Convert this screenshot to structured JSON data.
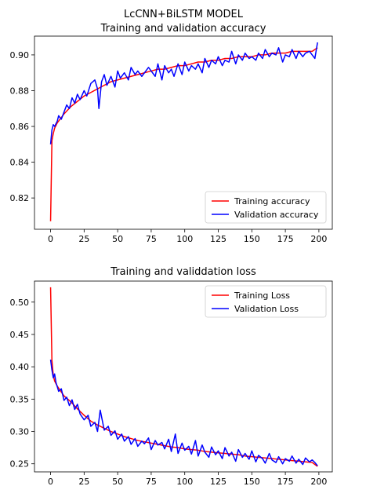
{
  "chart_data": [
    {
      "type": "line",
      "title_lines": [
        "LcCNN+BiLSTM MODEL",
        "Training and validation accuracy"
      ],
      "xlabel": "",
      "ylabel": "",
      "xlim": [
        -12,
        210
      ],
      "ylim": [
        0.8025,
        0.9105
      ],
      "x_ticks": [
        0,
        25,
        50,
        75,
        100,
        125,
        150,
        175,
        200
      ],
      "y_ticks": [
        0.82,
        0.84,
        0.86,
        0.88,
        0.9
      ],
      "y_tick_labels": [
        "0.82",
        "0.84",
        "0.86",
        "0.88",
        "0.90"
      ],
      "grid": false,
      "legend_position": "lower-right",
      "series": [
        {
          "name": "Training accuracy",
          "color": "#ff0000",
          "x": [
            0,
            1,
            2,
            3,
            5,
            8,
            10,
            15,
            20,
            25,
            30,
            35,
            40,
            45,
            50,
            55,
            60,
            65,
            70,
            75,
            80,
            85,
            90,
            95,
            100,
            105,
            110,
            115,
            120,
            125,
            130,
            135,
            140,
            145,
            150,
            155,
            160,
            165,
            170,
            175,
            180,
            185,
            190,
            195,
            199
          ],
          "y": [
            0.807,
            0.852,
            0.856,
            0.859,
            0.862,
            0.865,
            0.867,
            0.871,
            0.874,
            0.877,
            0.879,
            0.881,
            0.883,
            0.885,
            0.886,
            0.887,
            0.888,
            0.889,
            0.89,
            0.891,
            0.892,
            0.892,
            0.893,
            0.894,
            0.894,
            0.895,
            0.896,
            0.896,
            0.897,
            0.897,
            0.898,
            0.898,
            0.899,
            0.899,
            0.899,
            0.9,
            0.9,
            0.901,
            0.901,
            0.901,
            0.902,
            0.902,
            0.902,
            0.902,
            0.904
          ]
        },
        {
          "name": "Validation accuracy",
          "color": "#0000ff",
          "x": [
            0,
            1,
            2,
            3,
            5,
            6,
            8,
            10,
            12,
            14,
            16,
            18,
            20,
            22,
            25,
            27,
            30,
            33,
            35,
            36,
            38,
            40,
            42,
            45,
            48,
            50,
            52,
            55,
            58,
            60,
            63,
            65,
            68,
            70,
            73,
            75,
            78,
            80,
            83,
            85,
            88,
            90,
            92,
            95,
            98,
            100,
            103,
            105,
            108,
            110,
            113,
            115,
            118,
            120,
            123,
            125,
            128,
            130,
            133,
            135,
            138,
            140,
            143,
            145,
            148,
            150,
            153,
            155,
            158,
            160,
            163,
            165,
            168,
            170,
            173,
            175,
            178,
            180,
            183,
            185,
            188,
            190,
            193,
            195,
            197,
            199
          ],
          "y": [
            0.85,
            0.858,
            0.861,
            0.86,
            0.863,
            0.866,
            0.864,
            0.868,
            0.872,
            0.87,
            0.876,
            0.873,
            0.878,
            0.875,
            0.88,
            0.877,
            0.884,
            0.886,
            0.881,
            0.87,
            0.885,
            0.889,
            0.883,
            0.888,
            0.882,
            0.891,
            0.887,
            0.89,
            0.886,
            0.893,
            0.889,
            0.891,
            0.888,
            0.89,
            0.893,
            0.891,
            0.888,
            0.895,
            0.886,
            0.894,
            0.89,
            0.892,
            0.888,
            0.895,
            0.889,
            0.896,
            0.891,
            0.894,
            0.892,
            0.895,
            0.89,
            0.898,
            0.893,
            0.897,
            0.895,
            0.899,
            0.894,
            0.897,
            0.896,
            0.902,
            0.895,
            0.9,
            0.897,
            0.901,
            0.898,
            0.899,
            0.897,
            0.901,
            0.898,
            0.903,
            0.899,
            0.901,
            0.9,
            0.904,
            0.896,
            0.9,
            0.899,
            0.903,
            0.898,
            0.902,
            0.899,
            0.901,
            0.902,
            0.9,
            0.898,
            0.907
          ]
        }
      ]
    },
    {
      "type": "line",
      "title_lines": [
        "Training and validdation loss"
      ],
      "xlabel": "",
      "ylabel": "",
      "xlim": [
        -12,
        210
      ],
      "ylim": [
        0.2375,
        0.5325
      ],
      "x_ticks": [
        0,
        25,
        50,
        75,
        100,
        125,
        150,
        175,
        200
      ],
      "y_ticks": [
        0.25,
        0.3,
        0.35,
        0.4,
        0.45,
        0.5
      ],
      "y_tick_labels": [
        "0.25",
        "0.30",
        "0.35",
        "0.40",
        "0.45",
        "0.50"
      ],
      "grid": false,
      "legend_position": "upper-right",
      "series": [
        {
          "name": "Training Loss",
          "color": "#ff0000",
          "x": [
            0,
            1,
            2,
            3,
            5,
            8,
            10,
            15,
            20,
            25,
            30,
            35,
            40,
            45,
            50,
            55,
            60,
            65,
            70,
            75,
            80,
            85,
            90,
            95,
            100,
            105,
            110,
            115,
            120,
            125,
            130,
            135,
            140,
            145,
            150,
            155,
            160,
            165,
            170,
            175,
            180,
            185,
            190,
            195,
            199
          ],
          "y": [
            0.523,
            0.41,
            0.387,
            0.378,
            0.37,
            0.361,
            0.355,
            0.346,
            0.335,
            0.325,
            0.316,
            0.31,
            0.305,
            0.3,
            0.296,
            0.292,
            0.289,
            0.286,
            0.284,
            0.282,
            0.28,
            0.278,
            0.276,
            0.275,
            0.273,
            0.272,
            0.271,
            0.269,
            0.268,
            0.267,
            0.266,
            0.265,
            0.264,
            0.262,
            0.261,
            0.26,
            0.259,
            0.258,
            0.257,
            0.256,
            0.255,
            0.254,
            0.253,
            0.252,
            0.246
          ]
        },
        {
          "name": "Validation Loss",
          "color": "#0000ff",
          "x": [
            0,
            1,
            2,
            3,
            4,
            6,
            8,
            10,
            12,
            14,
            16,
            18,
            20,
            22,
            25,
            28,
            30,
            33,
            35,
            37,
            40,
            43,
            45,
            48,
            50,
            53,
            55,
            58,
            60,
            63,
            65,
            68,
            70,
            73,
            75,
            78,
            80,
            83,
            85,
            88,
            90,
            93,
            95,
            98,
            100,
            103,
            105,
            108,
            110,
            113,
            115,
            118,
            120,
            123,
            125,
            128,
            130,
            133,
            135,
            138,
            140,
            143,
            145,
            148,
            150,
            153,
            155,
            158,
            160,
            163,
            165,
            168,
            170,
            173,
            175,
            178,
            180,
            183,
            185,
            188,
            190,
            193,
            195,
            197,
            199
          ],
          "y": [
            0.411,
            0.395,
            0.383,
            0.389,
            0.376,
            0.362,
            0.366,
            0.348,
            0.353,
            0.34,
            0.349,
            0.334,
            0.342,
            0.327,
            0.318,
            0.325,
            0.308,
            0.314,
            0.3,
            0.333,
            0.302,
            0.308,
            0.294,
            0.301,
            0.288,
            0.296,
            0.285,
            0.292,
            0.28,
            0.289,
            0.277,
            0.285,
            0.281,
            0.29,
            0.272,
            0.286,
            0.279,
            0.283,
            0.273,
            0.288,
            0.269,
            0.296,
            0.266,
            0.282,
            0.271,
            0.277,
            0.265,
            0.286,
            0.262,
            0.279,
            0.268,
            0.26,
            0.276,
            0.264,
            0.27,
            0.258,
            0.275,
            0.262,
            0.268,
            0.254,
            0.272,
            0.26,
            0.266,
            0.257,
            0.27,
            0.253,
            0.263,
            0.258,
            0.251,
            0.266,
            0.256,
            0.252,
            0.261,
            0.25,
            0.258,
            0.254,
            0.262,
            0.251,
            0.257,
            0.249,
            0.259,
            0.253,
            0.256,
            0.252,
            0.247
          ]
        }
      ]
    }
  ]
}
